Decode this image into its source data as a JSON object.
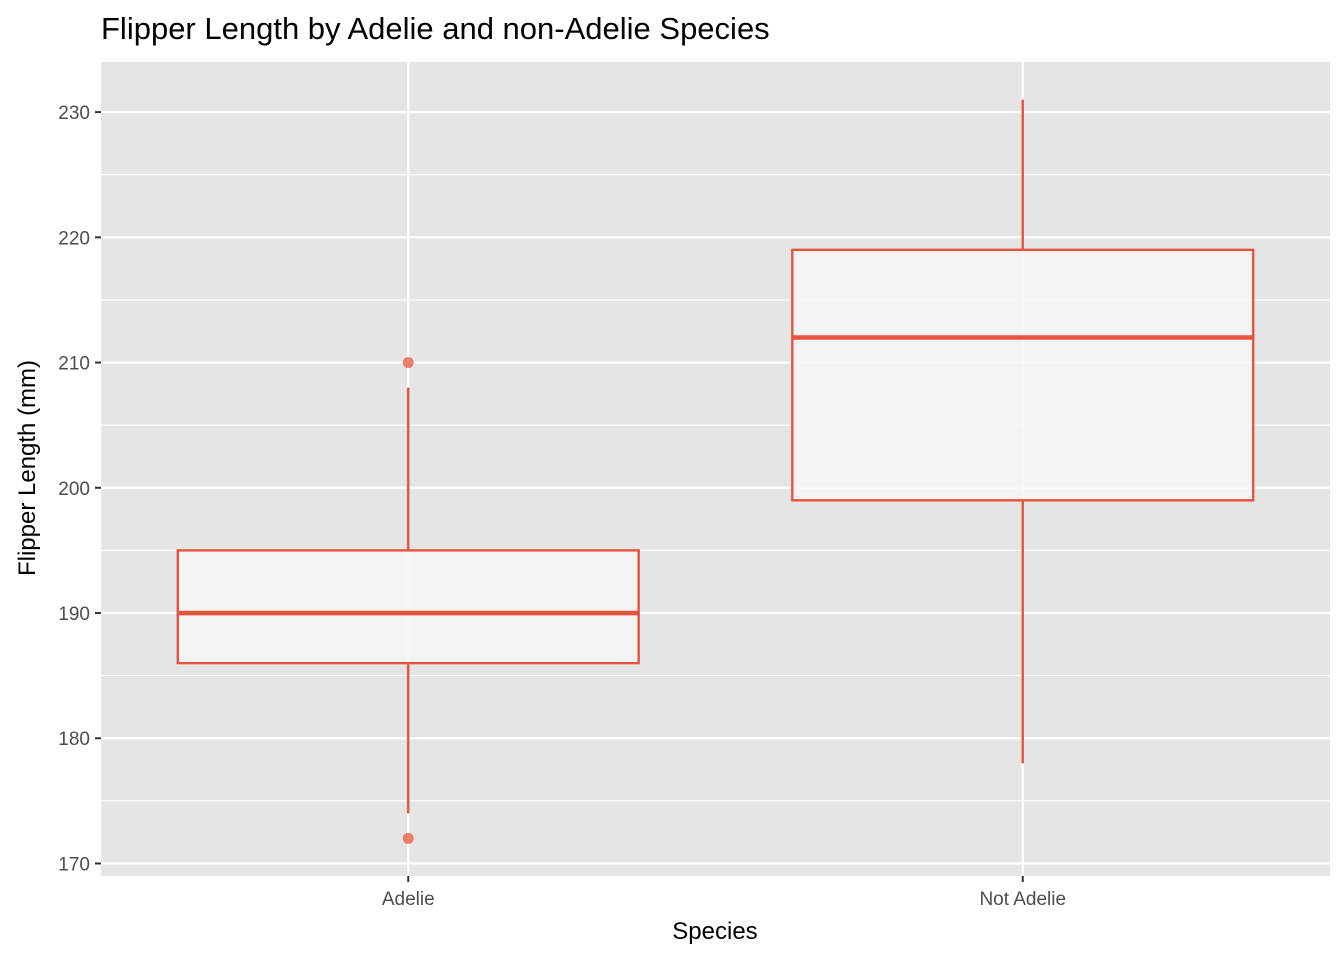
{
  "chart_data": {
    "type": "boxplot",
    "title": "Flipper Length by Adelie and non-Adelie Species",
    "xlabel": "Species",
    "ylabel": "Flipper Length (mm)",
    "ylim": [
      169,
      234
    ],
    "y_ticks": [
      170,
      180,
      190,
      200,
      210,
      220,
      230
    ],
    "y_tick_labels": [
      "170",
      "180",
      "190",
      "200",
      "210",
      "220",
      "230"
    ],
    "categories": [
      "Adelie",
      "Not Adelie"
    ],
    "grid": true,
    "legend": "none",
    "colors": {
      "panel_background": "#e5e5e5",
      "grid": "#ffffff",
      "box_outline": "#e8533f",
      "box_fill": "#f7f7f7",
      "outlier": "#e8533f"
    },
    "boxes": [
      {
        "category": "Adelie",
        "whisker_low": 174,
        "q1": 186,
        "median": 190,
        "q3": 195,
        "whisker_high": 208,
        "outliers": [
          210,
          172
        ]
      },
      {
        "category": "Not Adelie",
        "whisker_low": 178,
        "q1": 199,
        "median": 212,
        "q3": 219,
        "whisker_high": 231,
        "outliers": []
      }
    ]
  }
}
